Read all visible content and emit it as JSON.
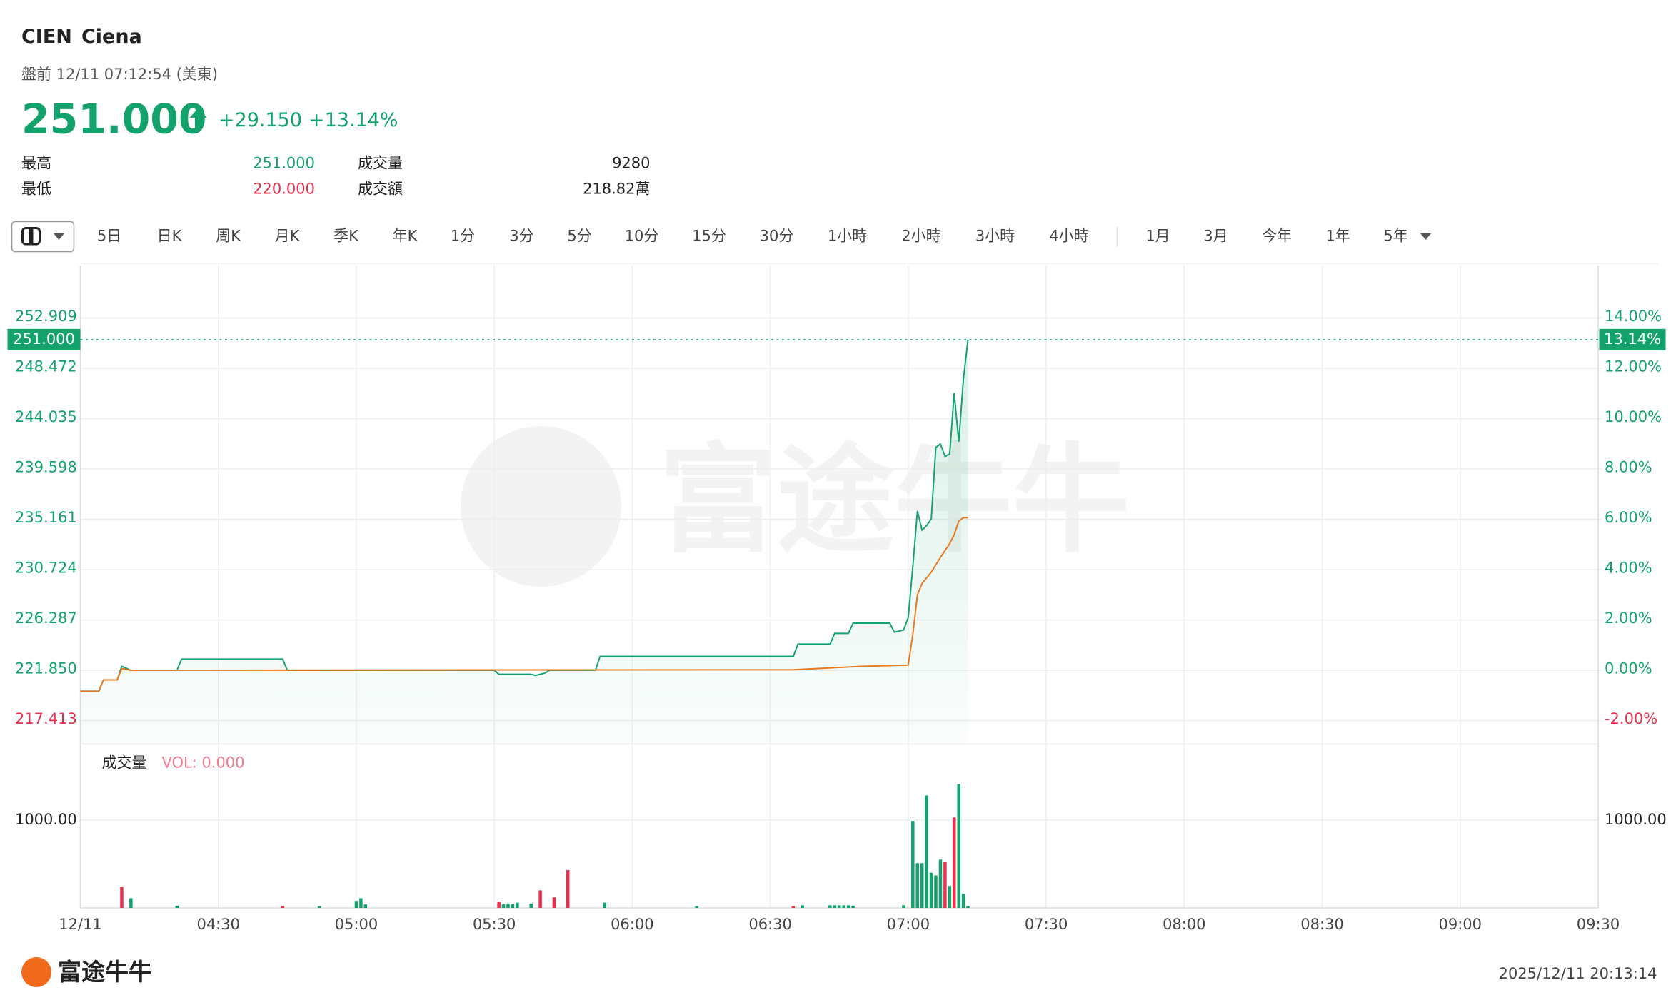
{
  "header": {
    "symbol": "CIEN",
    "name": "Ciena",
    "session": "盤前 12/11 07:12:54 (美東)",
    "price": "251.000",
    "change": "+29.150",
    "change_pct": "+13.14%",
    "stats": [
      [
        "最高",
        "251.000",
        "成交量",
        "9280"
      ],
      [
        "最低",
        "220.000",
        "成交額",
        "218.82萬"
      ]
    ]
  },
  "tabs": [
    "5日",
    "日K",
    "周K",
    "月K",
    "季K",
    "年K",
    "1分",
    "3分",
    "5分",
    "10分",
    "15分",
    "30分",
    "1小時",
    "2小時",
    "3小時",
    "4小時",
    "1月",
    "3月",
    "今年",
    "1年",
    "5年"
  ],
  "watermark": "富途牛牛",
  "footer": {
    "logo": "富途牛牛",
    "timestamp": "2025/12/11 20:13:14"
  },
  "chart_data": {
    "type": "line",
    "xlim": [
      "04:00",
      "09:30"
    ],
    "xticks": [
      {
        "value": "04:00",
        "label": "12/11"
      },
      "04:30",
      "05:00",
      "05:30",
      "06:00",
      "06:30",
      "07:00",
      "07:30",
      "08:00",
      "08:30",
      "09:00",
      "09:30"
    ],
    "ylim": [
      215.336,
      257.534
    ],
    "yticks": [
      217.413,
      {
        "value": 221.85,
        "label": "221.850"
      },
      226.287,
      230.724,
      235.161,
      239.598,
      244.035,
      248.472,
      252.909
    ],
    "y2lim": [
      -2.936,
      16.085
    ],
    "y2ticks": [
      {
        "value": -2,
        "label": "-2.00%"
      },
      {
        "value": 0,
        "label": "0.00%"
      },
      {
        "value": 2,
        "label": "2.00%"
      },
      {
        "value": 4,
        "label": "4.00%"
      },
      {
        "value": 6,
        "label": "6.00%"
      },
      {
        "value": 8,
        "label": "8.00%"
      },
      {
        "value": 10,
        "label": "10.00%"
      },
      {
        "value": 12,
        "label": "12.00%"
      },
      {
        "value": 14,
        "label": "14.00%"
      }
    ],
    "last_price": {
      "value": 251,
      "label": "251.000"
    },
    "last_pct": {
      "value": 13.14,
      "label": "13.14%"
    },
    "grid": true,
    "series": [
      {
        "color": "#13a26b",
        "x": [
          "04:00",
          "04:04",
          "04:05",
          "04:08",
          "04:09",
          "04:11",
          "04:21",
          "04:22",
          "04:44",
          "04:45",
          "05:30",
          "05:31",
          "05:38",
          "05:39",
          "05:41",
          "05:42",
          "05:52",
          "05:53",
          "06:35",
          "06:36",
          "06:43",
          "06:44",
          "06:47",
          "06:48",
          "06:56",
          "06:57",
          "06:59",
          "07:00",
          "07:01",
          "07:02",
          "07:03",
          "07:04",
          "07:05",
          "07:06",
          "07:07",
          "07:08",
          "07:09",
          "07:10",
          "07:11",
          "07:12",
          "07:13"
        ],
        "values": [
          220.0,
          220.0,
          221.0,
          221.0,
          222.2,
          221.85,
          221.85,
          222.83,
          222.83,
          221.85,
          221.85,
          221.5,
          221.5,
          221.4,
          221.6,
          221.85,
          221.85,
          223.08,
          223.08,
          224.15,
          224.15,
          225.1,
          225.1,
          226.0,
          226.0,
          225.2,
          225.4,
          226.5,
          231.0,
          235.9,
          234.2,
          234.6,
          235.2,
          241.5,
          241.8,
          240.7,
          240.9,
          246.3,
          242.0,
          247.5,
          251.0
        ]
      },
      {
        "color": "#e8771e",
        "x": [
          "04:00",
          "04:04",
          "04:05",
          "04:08",
          "04:09",
          "04:11",
          "06:35",
          "06:40",
          "06:50",
          "07:00",
          "07:01",
          "07:02",
          "07:03",
          "07:05",
          "07:07",
          "07:08",
          "07:09",
          "07:10",
          "07:11",
          "07:12",
          "07:13"
        ],
        "values": [
          220.0,
          220.0,
          221.0,
          221.0,
          222.0,
          221.85,
          221.9,
          222.0,
          222.2,
          222.3,
          225.0,
          228.5,
          229.5,
          230.5,
          231.8,
          232.4,
          233.0,
          233.8,
          235.0,
          235.3,
          235.3
        ]
      }
    ],
    "volume": {
      "name": "成交量",
      "label": "VOL: 0.000",
      "ylim": [
        0,
        1804
      ],
      "yticks": [
        {
          "value": 1000,
          "label": "1000.00"
        }
      ],
      "x": [
        "04:09",
        "04:11",
        "04:21",
        "04:44",
        "04:52",
        "05:00",
        "05:01",
        "05:02",
        "05:31",
        "05:32",
        "05:33",
        "05:34",
        "05:35",
        "05:38",
        "05:40",
        "05:43",
        "05:46",
        "05:54",
        "06:14",
        "06:35",
        "06:37",
        "06:43",
        "06:44",
        "06:45",
        "06:46",
        "06:47",
        "06:48",
        "06:59",
        "07:01",
        "07:02",
        "07:03",
        "07:04",
        "07:05",
        "07:06",
        "07:07",
        "07:08",
        "07:09",
        "07:10",
        "07:11",
        "07:12",
        "07:13"
      ],
      "values": [
        240,
        110,
        25,
        20,
        20,
        80,
        110,
        40,
        70,
        40,
        50,
        40,
        60,
        50,
        200,
        120,
        430,
        60,
        20,
        20,
        30,
        30,
        30,
        30,
        30,
        30,
        25,
        30,
        990,
        510,
        510,
        1280,
        400,
        370,
        550,
        520,
        250,
        1030,
        1410,
        160,
        20
      ],
      "colors": [
        "#e8304d",
        "#13a26b",
        "#13a26b",
        "#e8304d",
        "#13a26b",
        "#13a26b",
        "#13a26b",
        "#13a26b",
        "#e8304d",
        "#13a26b",
        "#13a26b",
        "#13a26b",
        "#13a26b",
        "#13a26b",
        "#e8304d",
        "#e8304d",
        "#e8304d",
        "#13a26b",
        "#13a26b",
        "#e8304d",
        "#13a26b",
        "#13a26b",
        "#13a26b",
        "#13a26b",
        "#13a26b",
        "#13a26b",
        "#13a26b",
        "#13a26b",
        "#13a26b",
        "#13a26b",
        "#13a26b",
        "#13a26b",
        "#13a26b",
        "#13a26b",
        "#13a26b",
        "#e8304d",
        "#13a26b",
        "#e8304d",
        "#13a26b",
        "#13a26b",
        "#13a26b"
      ]
    }
  }
}
